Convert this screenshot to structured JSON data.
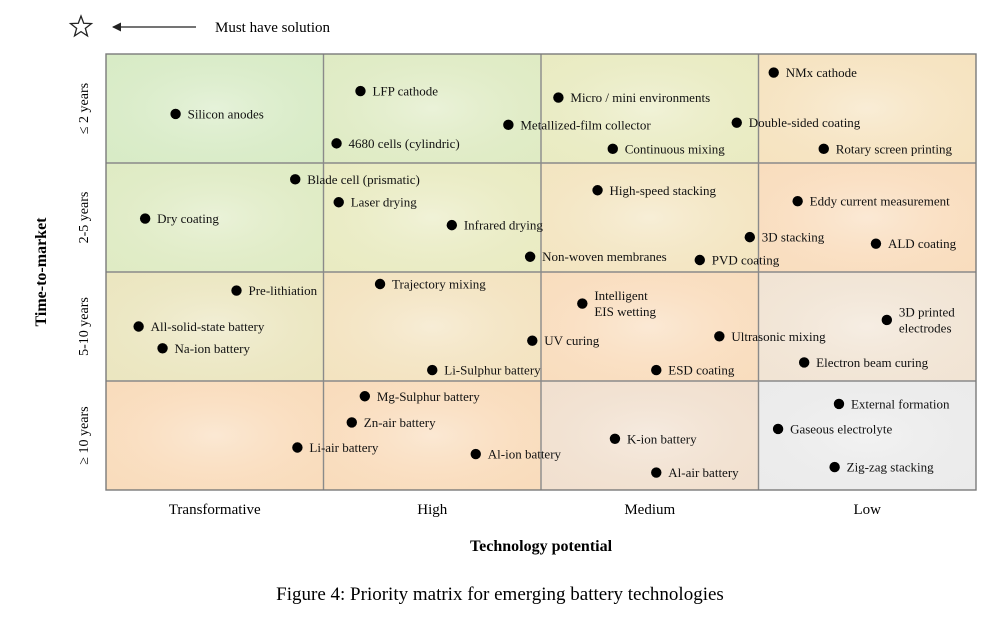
{
  "chart_data": {
    "type": "scatter",
    "title": "Figure 4: Priority matrix for emerging battery technologies",
    "xlabel": "Technology potential",
    "ylabel": "Time-to-market",
    "legend": {
      "symbol": "star-icon",
      "label": "Must have solution"
    },
    "x_categories": [
      "Transformative",
      "High",
      "Medium",
      "Low"
    ],
    "y_categories": [
      "≤ 2 years",
      "2-5 years",
      "5-10 years",
      "≥ 10 years"
    ],
    "xlim": [
      0,
      4
    ],
    "ylim": [
      0,
      4
    ],
    "cell_colors": [
      [
        "#d8ebc6",
        "#dfebc4",
        "#e9ebc2",
        "#f6e3c0"
      ],
      [
        "#dfebc4",
        "#e9ebc2",
        "#f3e5c1",
        "#f9ddbe"
      ],
      [
        "#ebe6c0",
        "#f3e3c0",
        "#f9ddbe",
        "#f1e4d4"
      ],
      [
        "#f9dcbc",
        "#f9dcbc",
        "#f1e0cf",
        "#ebebeb"
      ]
    ],
    "points": [
      {
        "label": "Silicon anodes",
        "x": 0.32,
        "y": 0.55
      },
      {
        "label": "LFP cathode",
        "x": 1.17,
        "y": 0.34
      },
      {
        "label": "4680 cells (cylindric)",
        "x": 1.06,
        "y": 0.82
      },
      {
        "label": "Micro / mini environments",
        "x": 2.08,
        "y": 0.4
      },
      {
        "label": "Metallized-film collector",
        "x": 1.85,
        "y": 0.65
      },
      {
        "label": "Continuous mixing",
        "x": 2.33,
        "y": 0.87
      },
      {
        "label": "NMx cathode",
        "x": 3.07,
        "y": 0.17
      },
      {
        "label": "Double-sided coating",
        "x": 2.9,
        "y": 0.63
      },
      {
        "label": "Rotary screen printing",
        "x": 3.3,
        "y": 0.87
      },
      {
        "label": "Blade cell (prismatic)",
        "x": 0.87,
        "y": 1.15
      },
      {
        "label": "Laser drying",
        "x": 1.07,
        "y": 1.36
      },
      {
        "label": "Dry coating",
        "x": 0.18,
        "y": 1.51
      },
      {
        "label": "Infrared drying",
        "x": 1.59,
        "y": 1.57
      },
      {
        "label": "High-speed stacking",
        "x": 2.26,
        "y": 1.25
      },
      {
        "label": "Eddy current measurement",
        "x": 3.18,
        "y": 1.35
      },
      {
        "label": "3D stacking",
        "x": 2.96,
        "y": 1.68
      },
      {
        "label": "ALD coating",
        "x": 3.54,
        "y": 1.74
      },
      {
        "label": "Non-woven membranes",
        "x": 1.95,
        "y": 1.86
      },
      {
        "label": "PVD coating",
        "x": 2.73,
        "y": 1.89
      },
      {
        "label": "Pre-lithiation",
        "x": 0.6,
        "y": 2.17
      },
      {
        "label": "Trajectory mixing",
        "x": 1.26,
        "y": 2.11
      },
      {
        "label": "Intelligent\nEIS wetting",
        "x": 2.19,
        "y": 2.29
      },
      {
        "label": "All-solid-state battery",
        "x": 0.15,
        "y": 2.5
      },
      {
        "label": "3D printed\nelectrodes",
        "x": 3.59,
        "y": 2.44
      },
      {
        "label": "Ultrasonic mixing",
        "x": 2.82,
        "y": 2.59
      },
      {
        "label": "UV curing",
        "x": 1.96,
        "y": 2.63
      },
      {
        "label": "Na-ion battery",
        "x": 0.26,
        "y": 2.7
      },
      {
        "label": "Li-Sulphur battery",
        "x": 1.5,
        "y": 2.9
      },
      {
        "label": "ESD coating",
        "x": 2.53,
        "y": 2.9
      },
      {
        "label": "Electron beam curing",
        "x": 3.21,
        "y": 2.83
      },
      {
        "label": "Mg-Sulphur battery",
        "x": 1.19,
        "y": 3.14
      },
      {
        "label": "Zn-air battery",
        "x": 1.13,
        "y": 3.38
      },
      {
        "label": "Li-air battery",
        "x": 0.88,
        "y": 3.61
      },
      {
        "label": "Al-ion battery",
        "x": 1.7,
        "y": 3.67
      },
      {
        "label": "K-ion battery",
        "x": 2.34,
        "y": 3.53
      },
      {
        "label": "Al-air battery",
        "x": 2.53,
        "y": 3.84
      },
      {
        "label": "External formation",
        "x": 3.37,
        "y": 3.21
      },
      {
        "label": "Gaseous electrolyte",
        "x": 3.09,
        "y": 3.44
      },
      {
        "label": "Zig-zag stacking",
        "x": 3.35,
        "y": 3.79
      }
    ]
  }
}
